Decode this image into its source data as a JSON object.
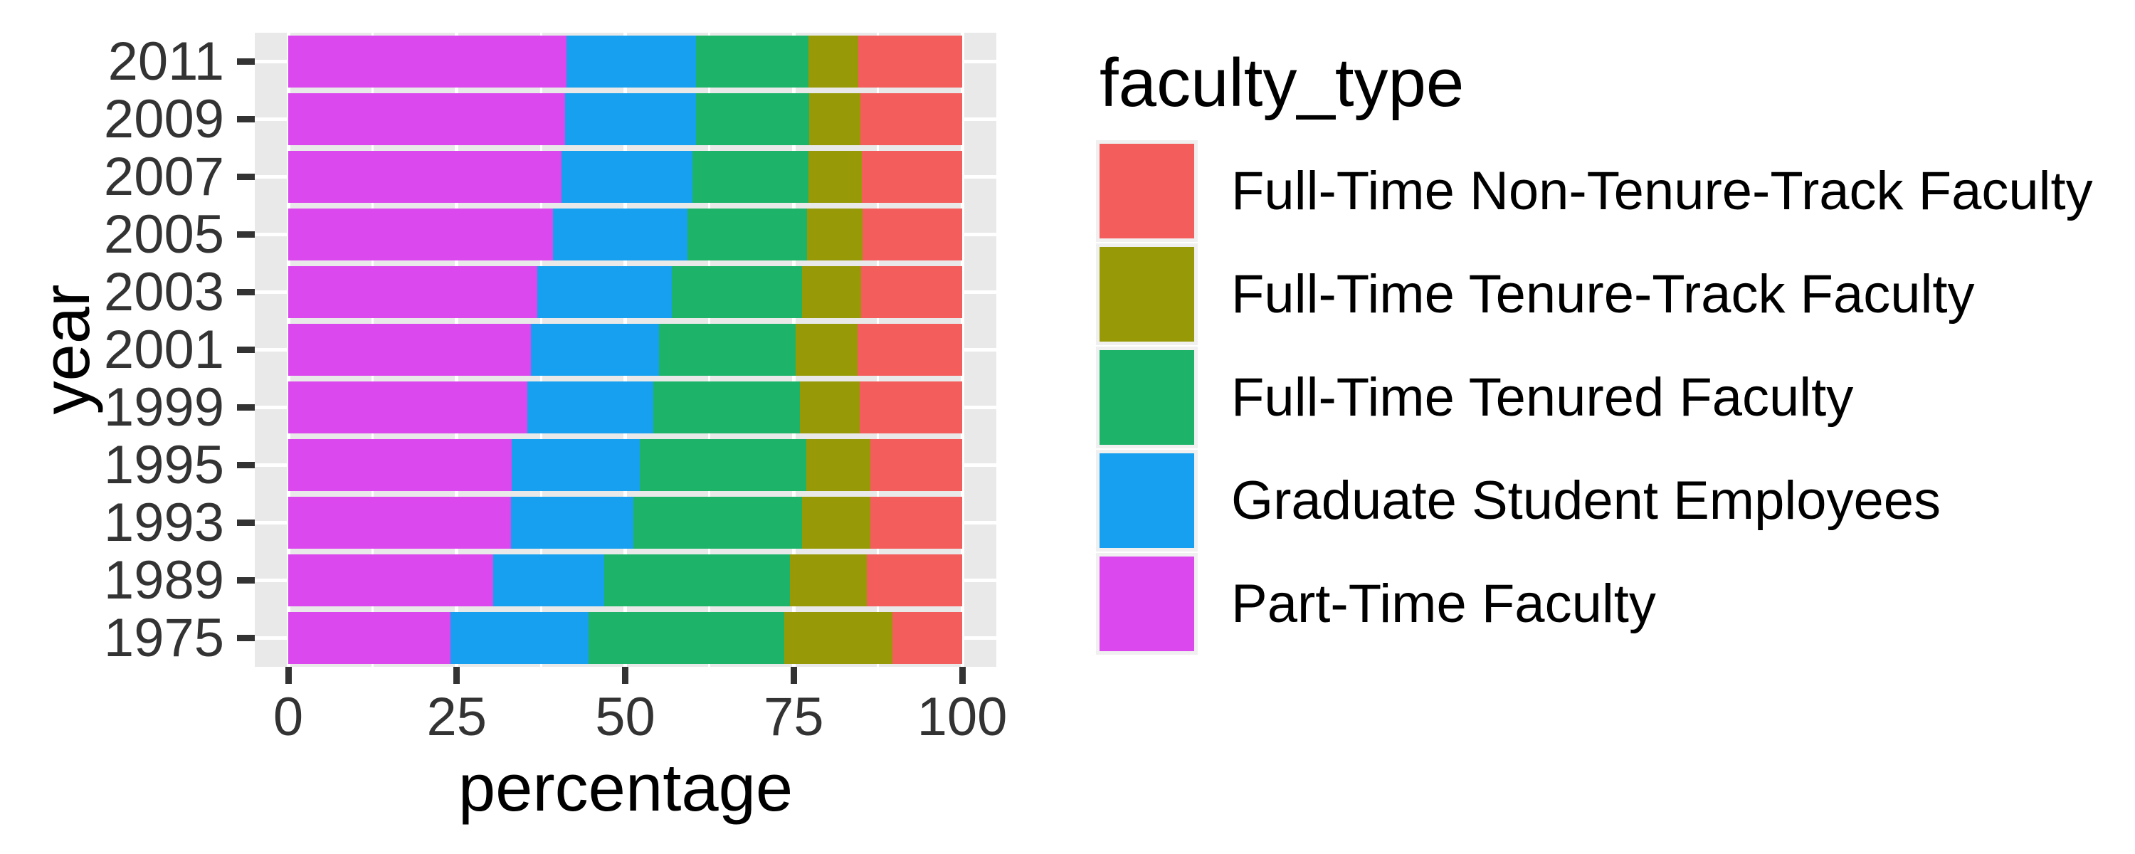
{
  "chart_data": {
    "type": "bar",
    "stacked": true,
    "orientation": "horizontal",
    "title": "",
    "xlabel": "percentage",
    "ylabel": "year",
    "xlim": [
      0,
      100
    ],
    "xticks": [
      0,
      25,
      50,
      75,
      100
    ],
    "minor_xticks": [
      12.5,
      37.5,
      62.5,
      87.5
    ],
    "grid": true,
    "legend_title": "faculty_type",
    "legend_position": "right",
    "categories": [
      "2011",
      "2009",
      "2007",
      "2005",
      "2003",
      "2001",
      "1999",
      "1995",
      "1993",
      "1989",
      "1975"
    ],
    "stack_order_note": "bars stacked left-to-right in reverse of legend order: Part-Time Faculty first, Full-Time Non-Tenure-Track Faculty last",
    "series": [
      {
        "name": "Full-Time Non-Tenure-Track Faculty",
        "color": "#F35D5B",
        "values": [
          15.4,
          15.1,
          14.9,
          14.8,
          15.0,
          15.5,
          15.2,
          13.6,
          13.6,
          14.1,
          10.3
        ]
      },
      {
        "name": "Full-Time Tenure-Track Faculty",
        "color": "#979A06",
        "values": [
          7.4,
          7.6,
          7.9,
          8.2,
          8.8,
          9.2,
          8.9,
          9.5,
          10.2,
          11.4,
          16.1
        ]
      },
      {
        "name": "Full-Time Tenured Faculty",
        "color": "#1DB469",
        "values": [
          16.7,
          16.8,
          17.2,
          17.8,
          19.3,
          20.3,
          21.8,
          24.8,
          25.0,
          27.6,
          29.0
        ]
      },
      {
        "name": "Graduate Student Employees",
        "color": "#16A0EF",
        "values": [
          19.3,
          19.4,
          19.5,
          19.9,
          20.0,
          19.0,
          18.7,
          19.0,
          18.1,
          16.5,
          20.5
        ]
      },
      {
        "name": "Part-Time Faculty",
        "color": "#DB48EE",
        "values": [
          41.3,
          41.1,
          40.5,
          39.3,
          37.0,
          36.0,
          35.5,
          33.2,
          33.1,
          30.4,
          24.0
        ]
      }
    ],
    "style": {
      "panel_bg": "#E9E9E9",
      "grid_color": "#FFFFFF",
      "tick_color": "#333333",
      "tick_label_color": "#333333",
      "title_color": "#000000",
      "legend_key_bg": "#F0F0F0"
    }
  }
}
